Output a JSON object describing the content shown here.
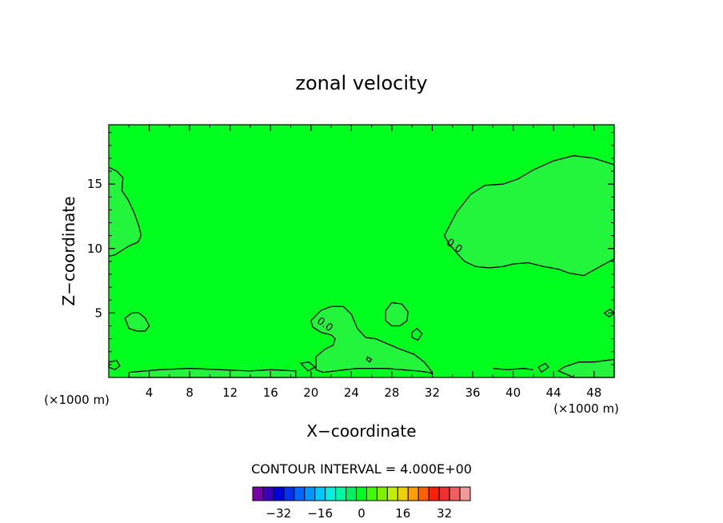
{
  "chart_data": {
    "type": "contour",
    "title": "zonal velocity",
    "xlabel": "X−coordinate",
    "ylabel": "Z−coordinate",
    "x_unit_left": "(×1000 m)",
    "x_unit_right": "(×1000 m)",
    "xlim": [
      0,
      50
    ],
    "ylim": [
      0,
      19.6
    ],
    "x_ticks": [
      4,
      8,
      12,
      16,
      20,
      24,
      28,
      32,
      36,
      40,
      44,
      48
    ],
    "y_ticks": [
      5,
      10,
      15
    ],
    "background_color": "#00ff1e",
    "field_level_color": "#22f53c",
    "contour_labels": [
      {
        "text": "0.0",
        "x": 21.2,
        "y": 3.9
      },
      {
        "text": "0.0",
        "x": 34.0,
        "y": 10.0
      }
    ],
    "regions": [
      {
        "name": "upper-right-cell",
        "value": 4,
        "x": [
          33.2,
          34.4,
          35.8,
          37.2,
          39.0,
          40.5,
          42.0,
          44.0,
          46.0,
          48.0,
          50.0,
          50.0,
          48.6,
          47.0,
          45.5,
          44.5,
          43.0,
          41.5,
          40.0,
          39.0,
          37.6,
          36.3,
          35.2,
          34.5,
          33.7,
          33.2
        ],
        "y": [
          11.0,
          12.8,
          14.2,
          14.9,
          15.0,
          15.4,
          16.1,
          16.8,
          17.2,
          17.0,
          16.5,
          9.2,
          8.6,
          7.9,
          8.1,
          8.4,
          8.6,
          8.9,
          8.8,
          8.6,
          8.5,
          8.6,
          9.0,
          9.6,
          10.3,
          11.0
        ]
      },
      {
        "name": "left-edge-cell",
        "value": 4,
        "x": [
          0,
          0.8,
          1.4,
          1.3,
          1.9,
          2.5,
          3.0,
          3.2,
          2.9,
          2.0,
          1.2,
          0.6,
          0
        ],
        "y": [
          16.3,
          16.0,
          15.5,
          14.5,
          13.8,
          12.8,
          11.7,
          11.0,
          10.5,
          10.2,
          9.8,
          9.5,
          9.4
        ]
      },
      {
        "name": "left-small-cell",
        "value": 4,
        "x": [
          1.6,
          2.3,
          3.0,
          3.6,
          4.0,
          3.6,
          2.8,
          2.0,
          1.6
        ],
        "y": [
          4.6,
          5.0,
          5.0,
          4.6,
          4.0,
          3.6,
          3.6,
          3.8,
          4.6
        ]
      },
      {
        "name": "center-bottom-cell",
        "value": 4,
        "x": [
          20.0,
          21.0,
          22.0,
          23.2,
          24.0,
          24.6,
          25.4,
          26.4,
          27.6,
          28.8,
          30.2,
          31.2,
          31.8,
          32.0,
          31.6,
          30.6,
          29.0,
          27.4,
          26.0,
          24.6,
          23.4,
          22.4,
          21.2,
          20.5,
          20.5,
          21.4,
          22.2,
          22.4,
          22.0,
          21.0,
          20.2,
          20.0
        ],
        "y": [
          4.4,
          5.2,
          5.5,
          5.5,
          4.9,
          3.8,
          3.1,
          3.0,
          2.6,
          2.2,
          1.8,
          1.2,
          0.6,
          0.3,
          0.4,
          0.5,
          0.6,
          0.7,
          0.7,
          0.7,
          0.6,
          0.5,
          0.4,
          0.6,
          1.6,
          2.2,
          2.5,
          3.0,
          3.3,
          3.5,
          3.9,
          4.4
        ]
      },
      {
        "name": "center-small-cell",
        "value": 4,
        "x": [
          27.4,
          28.0,
          29.0,
          29.6,
          29.5,
          28.8,
          28.0,
          27.4,
          27.4
        ],
        "y": [
          5.2,
          5.8,
          5.7,
          5.1,
          4.4,
          4.0,
          4.0,
          4.4,
          5.2
        ]
      },
      {
        "name": "bottom-strip-left",
        "value": 4,
        "x": [
          2.0,
          5.0,
          8.0,
          11.0,
          14.0,
          16.0,
          18.5,
          18.5,
          14.0,
          10.0,
          6.0,
          2.0,
          2.0
        ],
        "y": [
          0.4,
          0.6,
          0.7,
          0.6,
          0.5,
          0.6,
          0.5,
          0,
          0,
          0,
          0,
          0,
          0.4
        ]
      },
      {
        "name": "bottom-strip-right",
        "value": 4,
        "x": [
          45.0,
          46.5,
          48.0,
          50.0,
          50.0,
          46.0,
          44.5,
          45.0
        ],
        "y": [
          0.8,
          1.2,
          1.2,
          1.4,
          0,
          0,
          0.5,
          0.8
        ]
      }
    ],
    "contours": [
      {
        "name": "upper-right-contour",
        "closed": true,
        "points_ref": "upper-right-cell"
      },
      {
        "name": "left-edge-contour",
        "closed": false,
        "points_ref": "left-edge-cell"
      },
      {
        "name": "left-small-contour",
        "closed": true,
        "points_ref": "left-small-cell"
      },
      {
        "name": "center-bottom-contour",
        "closed": false,
        "points_ref": "center-bottom-cell"
      },
      {
        "name": "center-small-contour",
        "closed": true,
        "points_ref": "center-small-cell"
      },
      {
        "name": "bottom-strip-left-contour",
        "closed": false,
        "points_ref": "bottom-strip-left"
      },
      {
        "name": "bottom-strip-right-contour",
        "closed": false,
        "points_ref": "bottom-strip-right"
      },
      {
        "name": "small-closed-1",
        "closed": true,
        "x": [
          30.0,
          30.5,
          31.0,
          30.6,
          30.0,
          30.0
        ],
        "y": [
          3.5,
          3.8,
          3.4,
          2.9,
          3.1,
          3.5
        ]
      },
      {
        "name": "small-closed-2",
        "closed": true,
        "x": [
          49.0,
          49.6,
          50.0,
          49.5,
          49.0
        ],
        "y": [
          5.0,
          5.3,
          5.0,
          4.7,
          5.0
        ]
      },
      {
        "name": "small-closed-3",
        "closed": true,
        "x": [
          0.0,
          0.8,
          1.1,
          0.6,
          0.0
        ],
        "y": [
          1.2,
          1.3,
          0.9,
          0.6,
          0.8
        ]
      },
      {
        "name": "small-closed-4",
        "closed": true,
        "x": [
          42.5,
          43.2,
          43.5,
          42.8,
          42.5
        ],
        "y": [
          0.8,
          1.1,
          0.8,
          0.4,
          0.8
        ]
      },
      {
        "name": "small-closed-5",
        "closed": true,
        "x": [
          19.0,
          19.8,
          20.4,
          19.7,
          19.0
        ],
        "y": [
          1.1,
          1.2,
          0.8,
          0.5,
          1.1
        ]
      },
      {
        "name": "small-closed-6",
        "closed": true,
        "x": [
          25.6,
          26.0,
          25.8,
          25.5,
          25.6
        ],
        "y": [
          1.6,
          1.4,
          1.2,
          1.4,
          1.6
        ]
      },
      {
        "name": "low-line-right",
        "closed": false,
        "x": [
          38.0,
          39.5,
          41.0,
          42.0
        ],
        "y": [
          0.7,
          0.6,
          0.7,
          0.6
        ]
      }
    ],
    "contour_interval_text": "CONTOUR INTERVAL = 4.000E+00",
    "colorbar": {
      "colors": [
        "#7a00a8",
        "#3a00b8",
        "#0000d8",
        "#0030f0",
        "#0068ff",
        "#0098ff",
        "#00c8ff",
        "#00f0e0",
        "#00f8a0",
        "#00f060",
        "#00ff1e",
        "#40ff00",
        "#80f000",
        "#c0f000",
        "#f0d000",
        "#ffa000",
        "#ff6000",
        "#ff2000",
        "#f03030",
        "#f06060",
        "#f09a9a"
      ],
      "tick_labels": [
        "−32",
        "−16",
        "0",
        "16",
        "32"
      ],
      "tick_positions": [
        2.5,
        6.5,
        10.5,
        14.5,
        18.5
      ]
    }
  }
}
